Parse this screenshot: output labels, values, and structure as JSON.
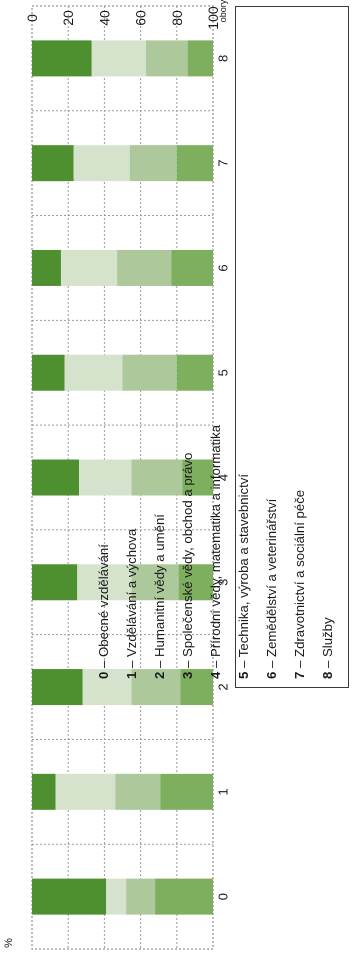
{
  "chart_data": {
    "type": "bar",
    "stacked": true,
    "orientation": "vertical",
    "y_unit_label": "%",
    "x_unit_label": "obory",
    "ylim": [
      0,
      100
    ],
    "y_ticks": [
      "0",
      "20",
      "40",
      "60",
      "80",
      "100"
    ],
    "grid": true,
    "categories": [
      "0",
      "1",
      "2",
      "3",
      "4",
      "5",
      "6",
      "7",
      "8"
    ],
    "series": [
      {
        "color": "#4e8f2f",
        "values": [
          41,
          13,
          28,
          25,
          26,
          18,
          16,
          23,
          33
        ]
      },
      {
        "color": "#d6e3cc",
        "values": [
          11,
          33,
          27,
          30,
          29,
          32,
          31,
          31,
          30
        ]
      },
      {
        "color": "#adc99b",
        "values": [
          16,
          25,
          27,
          26,
          28,
          30,
          30,
          26,
          23
        ]
      },
      {
        "color": "#7daf5e",
        "values": [
          32,
          29,
          18,
          19,
          17,
          20,
          23,
          20,
          14
        ]
      }
    ]
  },
  "legend": {
    "items": [
      {
        "num": "0",
        "text": "– Obecné vzdělávání"
      },
      {
        "num": "1",
        "text": "– Vzdělávání a výchova"
      },
      {
        "num": "2",
        "text": "– Humanitní vědy a umění"
      },
      {
        "num": "3",
        "text": "– Společenské vědy, obchod a právo"
      },
      {
        "num": "4",
        "text": "– Přírodní vědy, matematika a informatika"
      },
      {
        "num": "5",
        "text": "– Technika, výroba a stavebnictví"
      },
      {
        "num": "6",
        "text": "– Zemědělství a veterinářství"
      },
      {
        "num": "7",
        "text": "– Zdravotnictví a sociální péče"
      },
      {
        "num": "8",
        "text": "– Služby"
      }
    ]
  }
}
